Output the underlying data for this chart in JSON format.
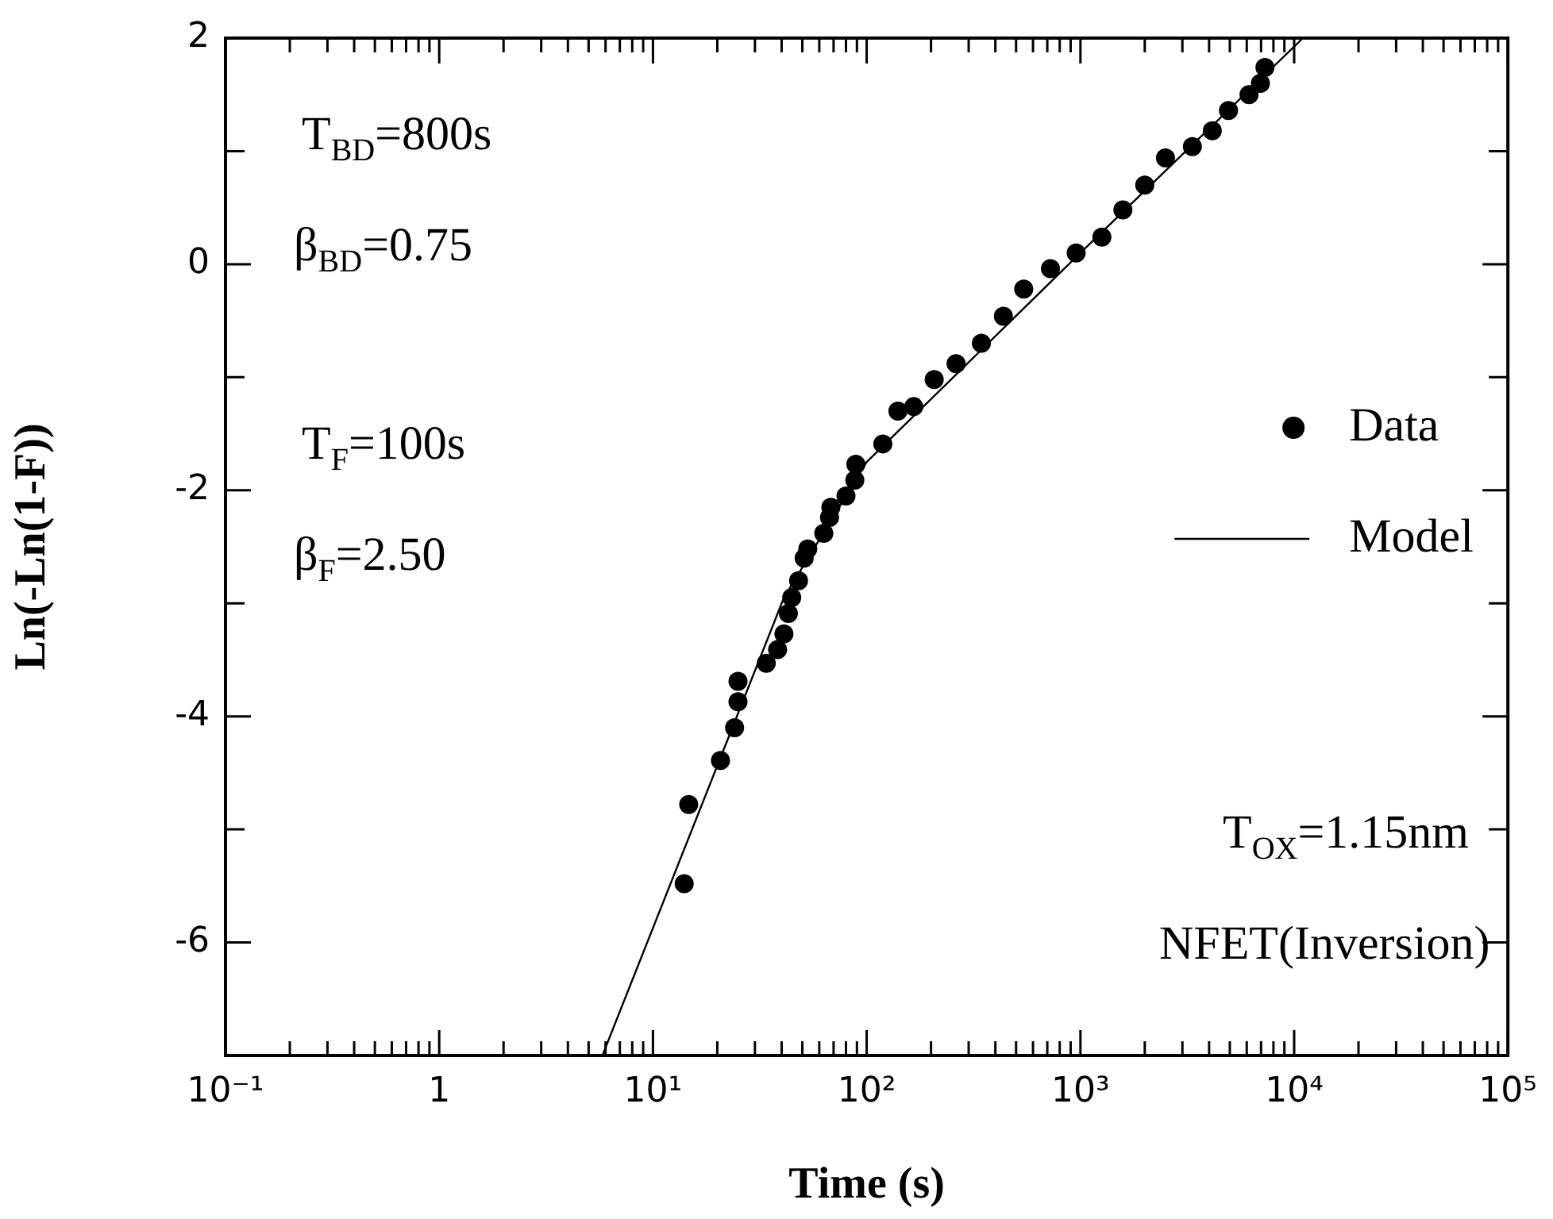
{
  "chart_data": {
    "type": "scatter",
    "xlabel": "Time (s)",
    "ylabel": "Ln(-Ln(1-F))",
    "log": "x",
    "grid": false,
    "legend": "right",
    "xlim": [
      0.1,
      100000
    ],
    "ylim": [
      -7,
      2
    ],
    "xticks": [
      {
        "value": 0.1,
        "label": "10⁻¹"
      },
      {
        "value": 0.2,
        "label": null
      },
      {
        "value": 0.3,
        "label": null
      },
      {
        "value": 0.4,
        "label": null
      },
      {
        "value": 0.5,
        "label": null
      },
      {
        "value": 0.6,
        "label": null
      },
      {
        "value": 0.7,
        "label": null
      },
      {
        "value": 0.8,
        "label": null
      },
      {
        "value": 0.9,
        "label": null
      },
      {
        "value": 1,
        "label": "1"
      },
      {
        "value": 2,
        "label": null
      },
      {
        "value": 3,
        "label": null
      },
      {
        "value": 4,
        "label": null
      },
      {
        "value": 5,
        "label": null
      },
      {
        "value": 6,
        "label": null
      },
      {
        "value": 7,
        "label": null
      },
      {
        "value": 8,
        "label": null
      },
      {
        "value": 9,
        "label": null
      },
      {
        "value": 10,
        "label": "10¹"
      },
      {
        "value": 20,
        "label": null
      },
      {
        "value": 30,
        "label": null
      },
      {
        "value": 40,
        "label": null
      },
      {
        "value": 50,
        "label": null
      },
      {
        "value": 60,
        "label": null
      },
      {
        "value": 70,
        "label": null
      },
      {
        "value": 80,
        "label": null
      },
      {
        "value": 90,
        "label": null
      },
      {
        "value": 100,
        "label": "10²"
      },
      {
        "value": 200,
        "label": null
      },
      {
        "value": 300,
        "label": null
      },
      {
        "value": 400,
        "label": null
      },
      {
        "value": 500,
        "label": null
      },
      {
        "value": 600,
        "label": null
      },
      {
        "value": 700,
        "label": null
      },
      {
        "value": 800,
        "label": null
      },
      {
        "value": 900,
        "label": null
      },
      {
        "value": 1000,
        "label": "10³"
      },
      {
        "value": 2000,
        "label": null
      },
      {
        "value": 3000,
        "label": null
      },
      {
        "value": 4000,
        "label": null
      },
      {
        "value": 5000,
        "label": null
      },
      {
        "value": 6000,
        "label": null
      },
      {
        "value": 7000,
        "label": null
      },
      {
        "value": 8000,
        "label": null
      },
      {
        "value": 9000,
        "label": null
      },
      {
        "value": 10000,
        "label": "10⁴"
      },
      {
        "value": 20000,
        "label": null
      },
      {
        "value": 30000,
        "label": null
      },
      {
        "value": 40000,
        "label": null
      },
      {
        "value": 50000,
        "label": null
      },
      {
        "value": 60000,
        "label": null
      },
      {
        "value": 70000,
        "label": null
      },
      {
        "value": 80000,
        "label": null
      },
      {
        "value": 90000,
        "label": null
      },
      {
        "value": 100000,
        "label": "10⁵"
      }
    ],
    "yticks": [
      {
        "value": -7,
        "label": null
      },
      -6,
      {
        "value": -5,
        "label": null
      },
      -4,
      {
        "value": -3,
        "label": null
      },
      -2,
      {
        "value": -1,
        "label": null
      },
      0,
      {
        "value": 1,
        "label": null
      },
      2
    ],
    "annotations": [
      "T$_{BD}$=800s",
      "β$_{BD}$=0.75",
      "T$_{F}$=100s",
      "β$_{F}$=2.50",
      "T$_{OX}$=1.15nm",
      "NFET(Inversion)"
    ],
    "series": [
      {
        "name": "Data",
        "marker": "circle",
        "color": "#000000",
        "x": [
          14.0,
          14.7,
          20.7,
          24.1,
          25,
          25,
          33.9,
          38.3,
          41,
          43,
          44.6,
          48,
          51,
          53,
          63,
          67,
          68,
          80,
          88,
          89,
          119,
          140,
          166,
          207,
          262,
          344,
          436,
          543,
          724,
          955,
          1260,
          1580,
          2000,
          2500,
          3340,
          4140,
          4930,
          6150,
          6950,
          7300
        ],
        "values": [
          -5.48,
          -4.78,
          -4.39,
          -4.1,
          -3.87,
          -3.69,
          -3.53,
          -3.41,
          -3.27,
          -3.09,
          -2.95,
          -2.8,
          -2.6,
          -2.52,
          -2.38,
          -2.24,
          -2.15,
          -2.05,
          -1.91,
          -1.77,
          -1.59,
          -1.3,
          -1.26,
          -1.02,
          -0.88,
          -0.7,
          -0.46,
          -0.22,
          -0.04,
          0.1,
          0.24,
          0.48,
          0.7,
          0.94,
          1.04,
          1.18,
          1.36,
          1.5,
          1.6,
          1.74
        ]
      },
      {
        "name": "Model",
        "type": "line",
        "marker": "none",
        "line_style": "solid",
        "color": "#000000",
        "x": [
          5.8,
          41,
          100,
          1000,
          11000
        ],
        "values": [
          -7,
          -2.95,
          -1.75,
          0.1,
          2
        ]
      }
    ]
  }
}
